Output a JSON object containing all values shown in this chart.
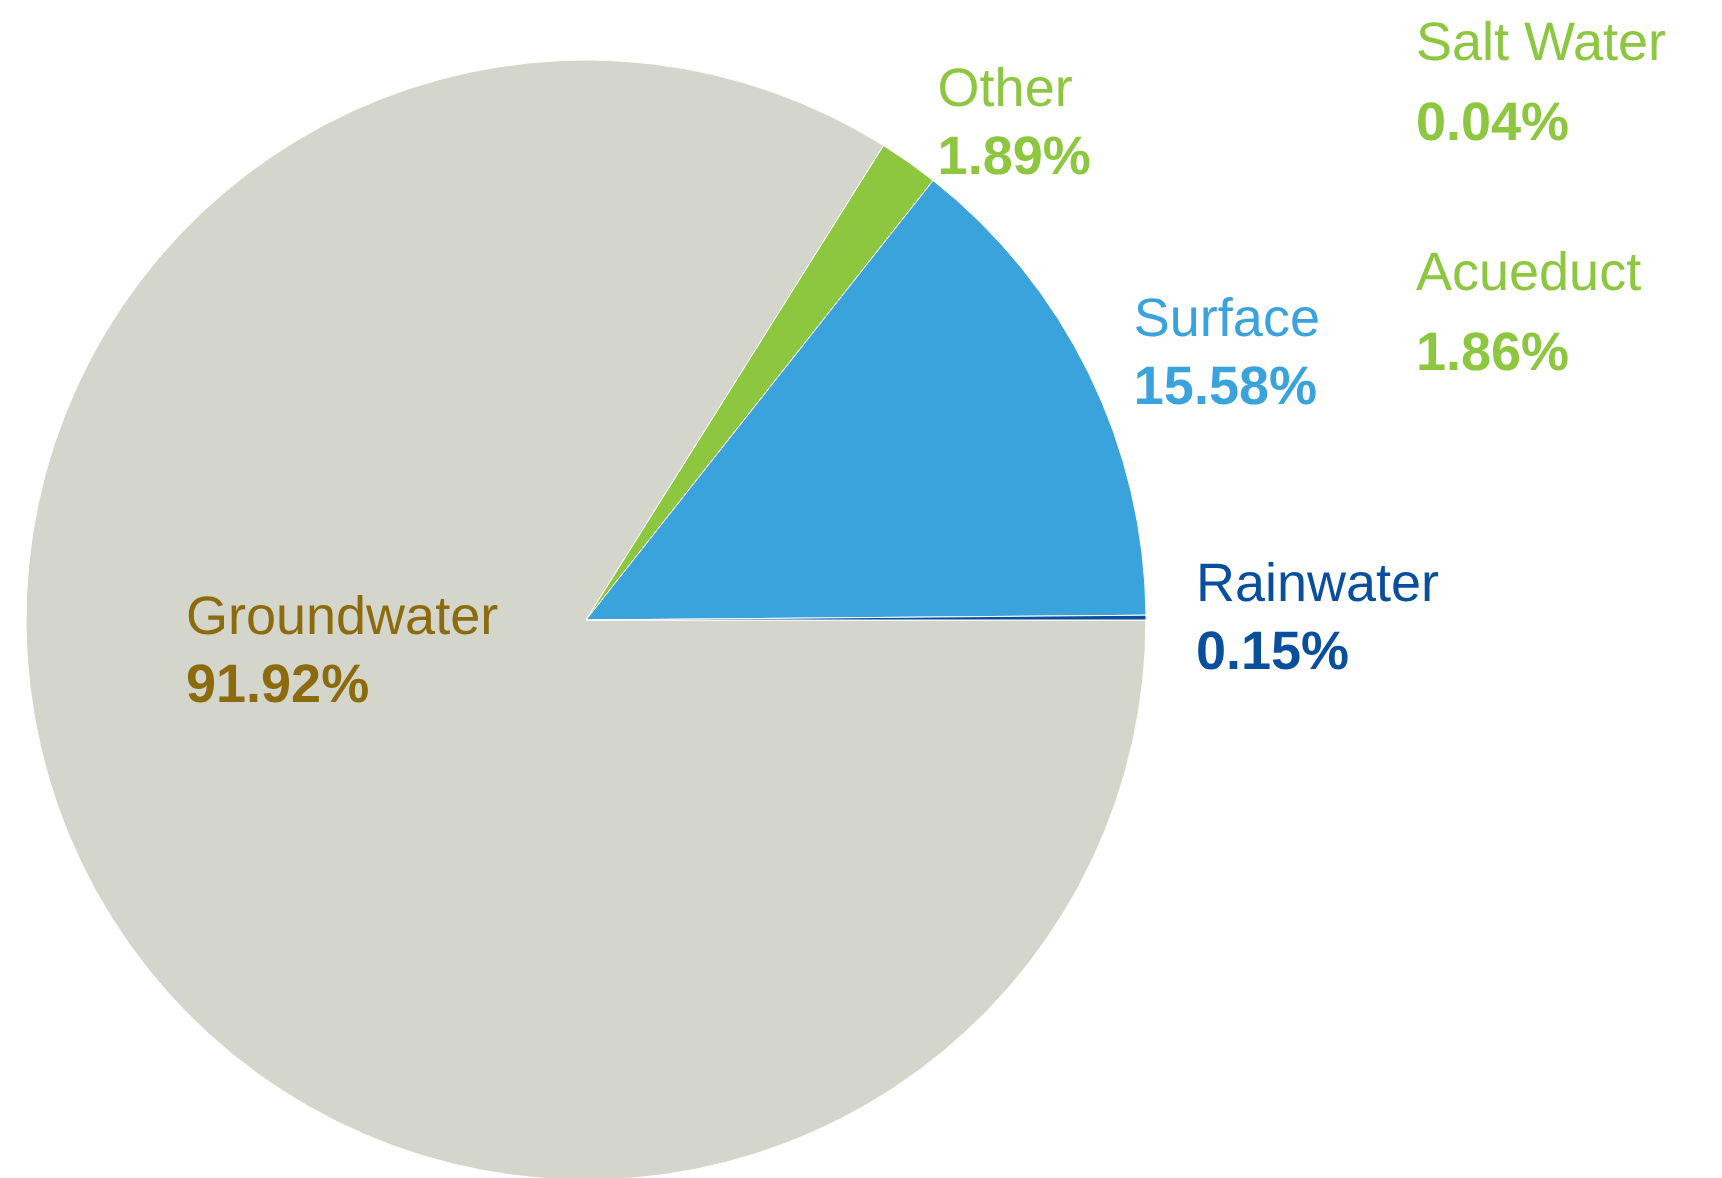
{
  "chart_data": {
    "type": "pie",
    "categories": [
      "Groundwater",
      "Other",
      "Surface",
      "Rainwater"
    ],
    "values": [
      91.92,
      1.89,
      15.58,
      0.15
    ],
    "value_labels": [
      "91.92%",
      "1.89%",
      "15.58%",
      "0.15%"
    ],
    "colors": [
      "#d5d6cb",
      "#8dc63f",
      "#3ba3dc",
      "#0a4f9e"
    ],
    "annotations": [
      "Salt Water\n0.04%",
      "Acueduct\n1.86%"
    ]
  }
}
